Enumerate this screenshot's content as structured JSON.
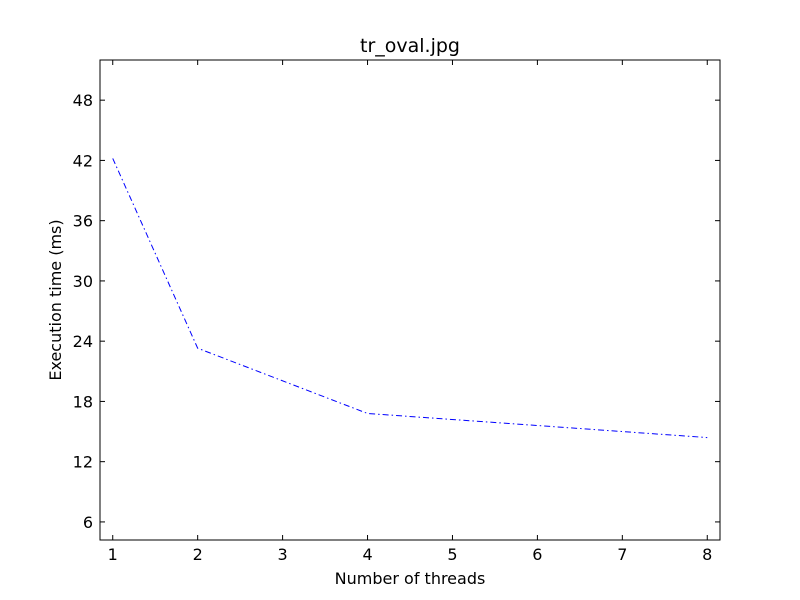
{
  "chart_data": {
    "type": "line",
    "title": "tr_oval.jpg",
    "xlabel": "Number of threads",
    "ylabel": "Execution time (ms)",
    "xlim": [
      0.85,
      8.15
    ],
    "ylim": [
      4.2,
      52.0
    ],
    "xticks": [
      1,
      2,
      3,
      4,
      5,
      6,
      7,
      8
    ],
    "yticks": [
      6,
      12,
      18,
      24,
      30,
      36,
      42,
      48
    ],
    "grid": false,
    "series": [
      {
        "color": "#0000ff",
        "line_style": "dash-dot",
        "x": [
          1,
          2,
          4,
          8
        ],
        "y": [
          42.2,
          23.3,
          16.8,
          14.4
        ]
      }
    ]
  }
}
